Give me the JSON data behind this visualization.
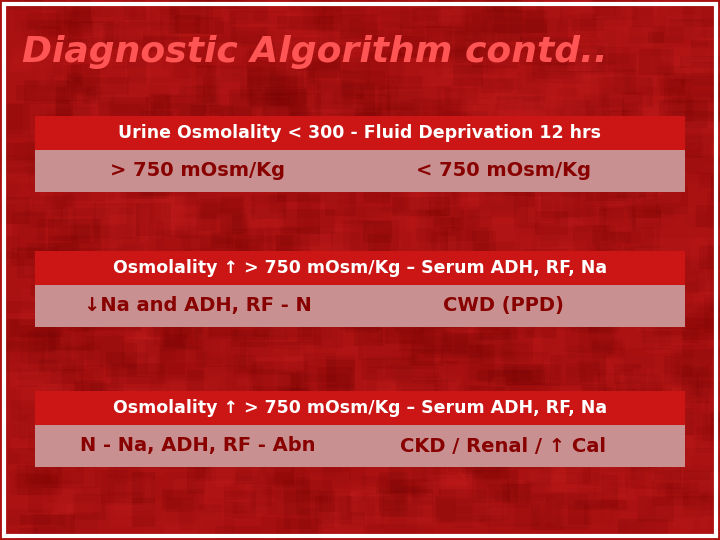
{
  "title": "Diagnostic Algorithm contd..",
  "title_color": "#FF5555",
  "bg_color": "#AA1111",
  "border_color": "#FFFFFF",
  "dark_red_bar": "#CC1515",
  "light_red_bar": "#C89090",
  "white": "#FFFFFF",
  "dark_red_text": "#AA0000",
  "sections": [
    {
      "header": "Urine Osmolality < 300 - Fluid Deprivation 12 hrs",
      "header_bg": "#CC1515",
      "header_text": "#FFFFFF",
      "row_bg": "#C89090",
      "cells": [
        "> 750 mOsm/Kg",
        "< 750 mOsm/Kg"
      ],
      "cell_text_color": "#880000"
    },
    {
      "header": "Osmolality ↑ > 750 mOsm/Kg – Serum ADH, RF, Na",
      "header_bg": "#CC1515",
      "header_text": "#FFFFFF",
      "row_bg": "#C89090",
      "cells": [
        "↓Na and ADH, RF - N",
        "CWD (PPD)"
      ],
      "cell_text_color": "#880000"
    },
    {
      "header": "Osmolality ↑ > 750 mOsm/Kg – Serum ADH, RF, Na",
      "header_bg": "#CC1515",
      "header_text": "#FFFFFF",
      "row_bg": "#C89090",
      "cells": [
        "N - Na, ADH, RF - Abn",
        "CKD / Renal / ↑ Cal"
      ],
      "cell_text_color": "#880000"
    }
  ],
  "figsize": [
    7.2,
    5.4
  ],
  "dpi": 100
}
